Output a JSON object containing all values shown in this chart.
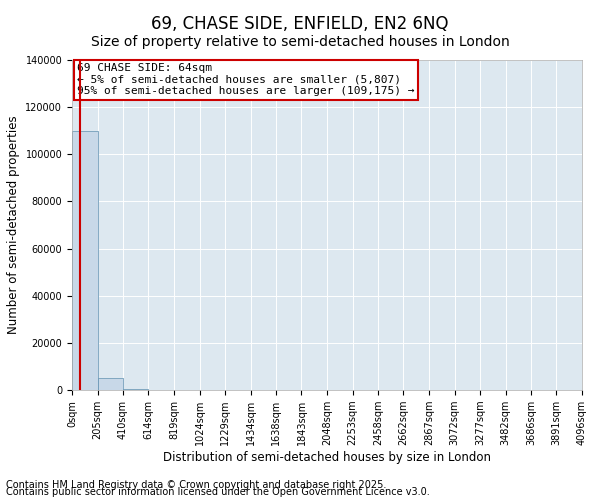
{
  "title": "69, CHASE SIDE, ENFIELD, EN2 6NQ",
  "subtitle": "Size of property relative to semi-detached houses in London",
  "xlabel": "Distribution of semi-detached houses by size in London",
  "ylabel": "Number of semi-detached properties",
  "footnote1": "Contains HM Land Registry data © Crown copyright and database right 2025.",
  "footnote2": "Contains public sector information licensed under the Open Government Licence v3.0.",
  "bar_values": [
    110000,
    5000,
    500,
    200,
    100,
    80,
    60,
    50,
    40,
    30,
    25,
    20,
    15,
    12,
    10,
    8,
    6,
    5,
    4,
    3
  ],
  "bin_edges": [
    0,
    205,
    410,
    614,
    819,
    1024,
    1229,
    1434,
    1638,
    1843,
    2048,
    2253,
    2458,
    2662,
    2867,
    3072,
    3277,
    3482,
    3686,
    3891,
    4096
  ],
  "xtick_labels": [
    "0sqm",
    "205sqm",
    "410sqm",
    "614sqm",
    "819sqm",
    "1024sqm",
    "1229sqm",
    "1434sqm",
    "1638sqm",
    "1843sqm",
    "2048sqm",
    "2253sqm",
    "2458sqm",
    "2662sqm",
    "2867sqm",
    "3072sqm",
    "3277sqm",
    "3482sqm",
    "3686sqm",
    "3891sqm",
    "4096sqm"
  ],
  "ytick_values": [
    0,
    20000,
    40000,
    60000,
    80000,
    100000,
    120000,
    140000
  ],
  "ytick_labels": [
    "0",
    "20000",
    "40000",
    "60000",
    "80000",
    "100000",
    "120000",
    "140000"
  ],
  "bar_color": "#c8d8e8",
  "bar_edge_color": "#6090b0",
  "property_size": 64,
  "red_line_color": "#cc0000",
  "annotation_line1": "69 CHASE SIDE: 64sqm",
  "annotation_line2": "← 5% of semi-detached houses are smaller (5,807)",
  "annotation_line3": "95% of semi-detached houses are larger (109,175) →",
  "annotation_box_color": "#cc0000",
  "annotation_bg_color": "#ffffff",
  "ylim": [
    0,
    140000
  ],
  "xlim": [
    0,
    4096
  ],
  "title_fontsize": 12,
  "subtitle_fontsize": 10,
  "footnote_fontsize": 7,
  "axis_label_fontsize": 8.5,
  "tick_fontsize": 7,
  "annotation_fontsize": 8
}
